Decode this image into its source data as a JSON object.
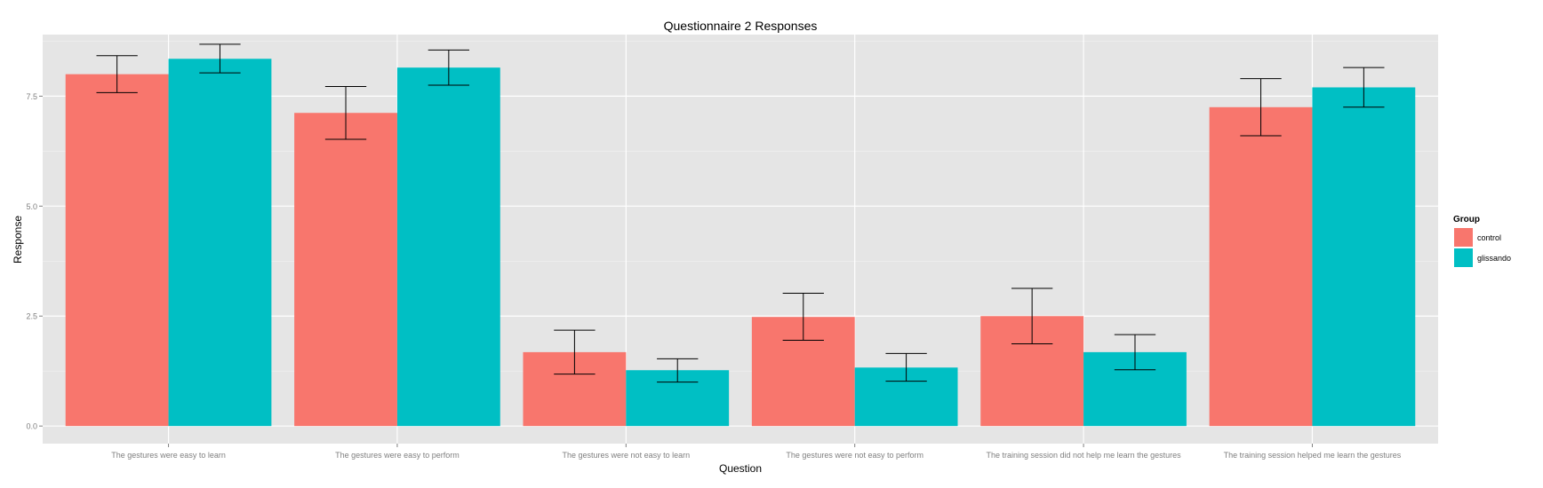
{
  "chart_data": {
    "type": "bar",
    "title": "Questionnaire 2 Responses",
    "xlabel": "Question",
    "ylabel": "Response",
    "ylim": [
      -0.4,
      8.9
    ],
    "yticks": [
      "0.0",
      "2.5",
      "5.0",
      "7.5"
    ],
    "ytick_values": [
      0,
      2.5,
      5.0,
      7.5
    ],
    "grid": true,
    "legend_position": "right",
    "legend_title": "Group",
    "categories": [
      "The gestures were easy to learn",
      "The gestures were easy to perform",
      "The gestures were not easy to learn",
      "The gestures were not easy to perform",
      "The training session did not help me learn the gestures",
      "The training session helped me learn the gestures"
    ],
    "series": [
      {
        "name": "control",
        "color": "#F8766D",
        "values": [
          8.0,
          7.12,
          1.68,
          2.48,
          2.5,
          7.25
        ],
        "error_low": [
          7.58,
          6.52,
          1.18,
          1.95,
          1.87,
          6.6
        ],
        "error_high": [
          8.42,
          7.72,
          2.18,
          3.02,
          3.13,
          7.9
        ]
      },
      {
        "name": "glissando",
        "color": "#00BFC4",
        "values": [
          8.35,
          8.15,
          1.27,
          1.33,
          1.68,
          7.7
        ],
        "error_low": [
          8.03,
          7.75,
          1.0,
          1.02,
          1.28,
          7.25
        ],
        "error_high": [
          8.68,
          8.55,
          1.53,
          1.65,
          2.08,
          8.15
        ]
      }
    ]
  }
}
